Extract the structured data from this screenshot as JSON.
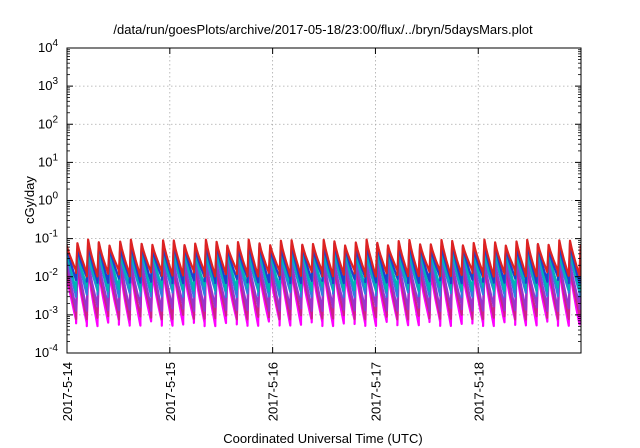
{
  "chart_data": {
    "type": "line",
    "title": "/data/run/goesPlots/archive/2017-05-18/23:00/flux/../bryn/5daysMars.plot",
    "xlabel": "Coordinated Universal Time (UTC)",
    "ylabel": "cGy/day",
    "y_scale": "log",
    "ylim": [
      0.0001,
      10000
    ],
    "y_ticks": [
      {
        "value": 0.0001,
        "base": "10",
        "exp": "-4"
      },
      {
        "value": 0.001,
        "base": "10",
        "exp": "-3"
      },
      {
        "value": 0.01,
        "base": "10",
        "exp": "-2"
      },
      {
        "value": 0.1,
        "base": "10",
        "exp": "-1"
      },
      {
        "value": 1,
        "base": "10",
        "exp": "0"
      },
      {
        "value": 10,
        "base": "10",
        "exp": "1"
      },
      {
        "value": 100,
        "base": "10",
        "exp": "2"
      },
      {
        "value": 1000,
        "base": "10",
        "exp": "3"
      },
      {
        "value": 10000,
        "base": "10",
        "exp": "4"
      }
    ],
    "xlim": [
      "2017-05-14T00:00",
      "2017-05-18T23:59"
    ],
    "x_ticks": [
      {
        "value": "2017-05-14",
        "label": "2017-5-14"
      },
      {
        "value": "2017-05-15",
        "label": "2017-5-15"
      },
      {
        "value": "2017-05-16",
        "label": "2017-5-16"
      },
      {
        "value": "2017-05-17",
        "label": "2017-5-17"
      },
      {
        "value": "2017-05-18",
        "label": "2017-5-18"
      }
    ],
    "grid": true,
    "legend": "none",
    "sawtooth_period_hours": 2.5,
    "series": [
      {
        "color": "#ff00ff",
        "peak": 0.015,
        "trough": 0.0006
      },
      {
        "color": "#cc2288",
        "peak": 0.02,
        "trough": 0.0009
      },
      {
        "color": "#9933cc",
        "peak": 0.03,
        "trough": 0.0015
      },
      {
        "color": "#2f7fe0",
        "peak": 0.045,
        "trough": 0.0035
      },
      {
        "color": "#00b4b4",
        "peak": 0.05,
        "trough": 0.005
      },
      {
        "color": "#1f3fd0",
        "peak": 0.065,
        "trough": 0.008
      },
      {
        "color": "#dd2222",
        "peak": 0.08,
        "trough": 0.012
      }
    ]
  }
}
